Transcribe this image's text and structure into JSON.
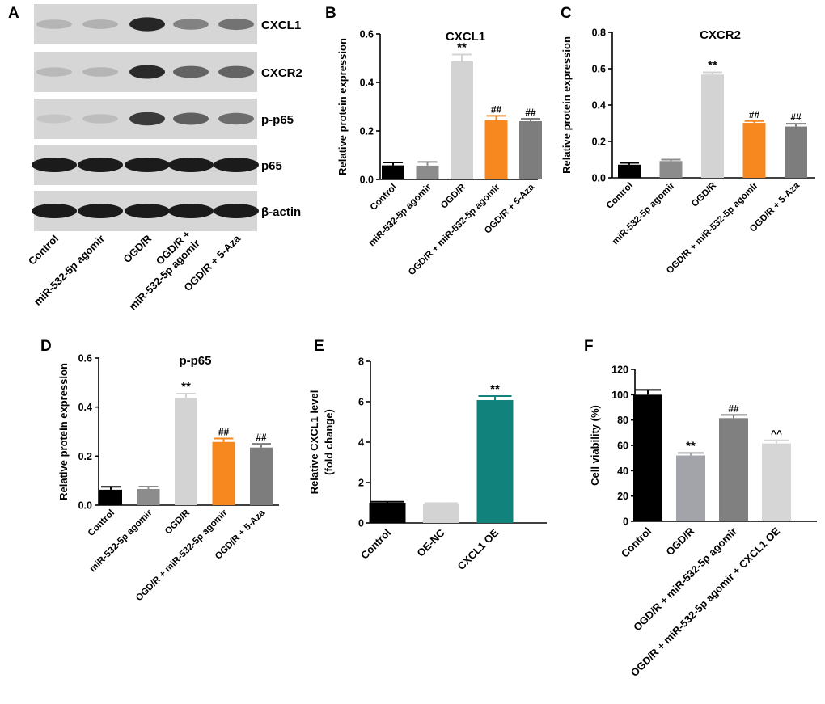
{
  "chart_data": [
    {
      "panel": "A",
      "type": "western-blot",
      "bands": [
        "CXCL1",
        "CXCR2",
        "p-p65",
        "p65",
        "β-actin"
      ],
      "band_intensity": [
        [
          0.2,
          0.22,
          0.9,
          0.45,
          0.52
        ],
        [
          0.18,
          0.2,
          0.88,
          0.6,
          0.6
        ],
        [
          0.12,
          0.16,
          0.8,
          0.62,
          0.55
        ],
        [
          0.95,
          0.95,
          0.95,
          0.95,
          0.95
        ],
        [
          0.95,
          0.95,
          0.95,
          0.95,
          0.95
        ]
      ],
      "lanes": [
        "Control",
        "miR-532-5p agomir",
        "OGD/R",
        "OGD/R +\nmiR-532-5p agomir",
        "OGD/R + 5-Aza"
      ]
    },
    {
      "panel": "B",
      "type": "bar",
      "title": "CXCL1",
      "ylabel": "Relative protein expression",
      "ylim": [
        0,
        0.6
      ],
      "yticks": [
        "0.0",
        "0.2",
        "0.4",
        "0.6"
      ],
      "categories": [
        "Control",
        "miR-532-5p agomir",
        "OGD/R",
        "OGD/R + miR-532-5p agomir",
        "OGD/R + 5-Aza"
      ],
      "values": [
        0.058,
        0.057,
        0.487,
        0.244,
        0.24
      ],
      "errors": [
        0.012,
        0.015,
        0.028,
        0.018,
        0.01
      ],
      "colors": [
        "#000000",
        "#8c8c8c",
        "#d3d3d3",
        "#f7881f",
        "#7d7d7d"
      ],
      "annotations": [
        "",
        "",
        "**",
        "##",
        "##"
      ]
    },
    {
      "panel": "C",
      "type": "bar",
      "title": "CXCR2",
      "ylabel": "Relative protein expression",
      "ylim": [
        0,
        0.8
      ],
      "yticks": [
        "0.0",
        "0.2",
        "0.4",
        "0.6",
        "0.8"
      ],
      "categories": [
        "Control",
        "miR-532-5p agomir",
        "OGD/R",
        "OGD/R + miR-532-5p agomir",
        "OGD/R + 5-Aza"
      ],
      "values": [
        0.072,
        0.092,
        0.568,
        0.302,
        0.282
      ],
      "errors": [
        0.01,
        0.008,
        0.012,
        0.01,
        0.015
      ],
      "colors": [
        "#000000",
        "#8c8c8c",
        "#d3d3d3",
        "#f7881f",
        "#7d7d7d"
      ],
      "annotations": [
        "",
        "",
        "**",
        "##",
        "##"
      ]
    },
    {
      "panel": "D",
      "type": "bar",
      "title": "p-p65",
      "ylabel": "Relative protein expression",
      "ylim": [
        0,
        0.6
      ],
      "yticks": [
        "0.0",
        "0.2",
        "0.4",
        "0.6"
      ],
      "categories": [
        "Control",
        "miR-532-5p agomir",
        "OGD/R",
        "OGD/R + miR-532-5p agomir",
        "OGD/R + 5-Aza"
      ],
      "values": [
        0.063,
        0.066,
        0.437,
        0.258,
        0.235
      ],
      "errors": [
        0.012,
        0.01,
        0.018,
        0.014,
        0.015
      ],
      "colors": [
        "#000000",
        "#8c8c8c",
        "#d3d3d3",
        "#f7881f",
        "#7d7d7d"
      ],
      "annotations": [
        "",
        "",
        "**",
        "##",
        "##"
      ]
    },
    {
      "panel": "E",
      "type": "bar",
      "title": "",
      "ylabel": "Relative CXCL1 level\n(fold change)",
      "ylim": [
        0,
        8
      ],
      "yticks": [
        "0",
        "2",
        "4",
        "6",
        "8"
      ],
      "categories": [
        "Control",
        "OE-NC",
        "CXCL1 OE"
      ],
      "values": [
        1.0,
        0.93,
        6.08
      ],
      "errors": [
        0.05,
        0.05,
        0.2
      ],
      "colors": [
        "#000000",
        "#d3d3d3",
        "#12827d"
      ],
      "annotations": [
        "",
        "",
        "**"
      ]
    },
    {
      "panel": "F",
      "type": "bar",
      "title": "",
      "ylabel": "Cell viability (%)",
      "ylim": [
        0,
        120
      ],
      "yticks": [
        "0",
        "20",
        "40",
        "60",
        "80",
        "100",
        "120"
      ],
      "categories": [
        "Control",
        "OGD/R",
        "OGD/R + miR-532-5p agomir",
        "OGD/R +  miR-532-5p agomir + CXCL1 OE"
      ],
      "values": [
        100,
        52,
        81.5,
        61.5
      ],
      "errors": [
        3.8,
        2.0,
        2.5,
        2.5
      ],
      "colors": [
        "#000000",
        "#a3a3aa",
        "#808080",
        "#d6d6d6"
      ],
      "annotations": [
        "",
        "**",
        "##",
        "^^"
      ]
    }
  ]
}
